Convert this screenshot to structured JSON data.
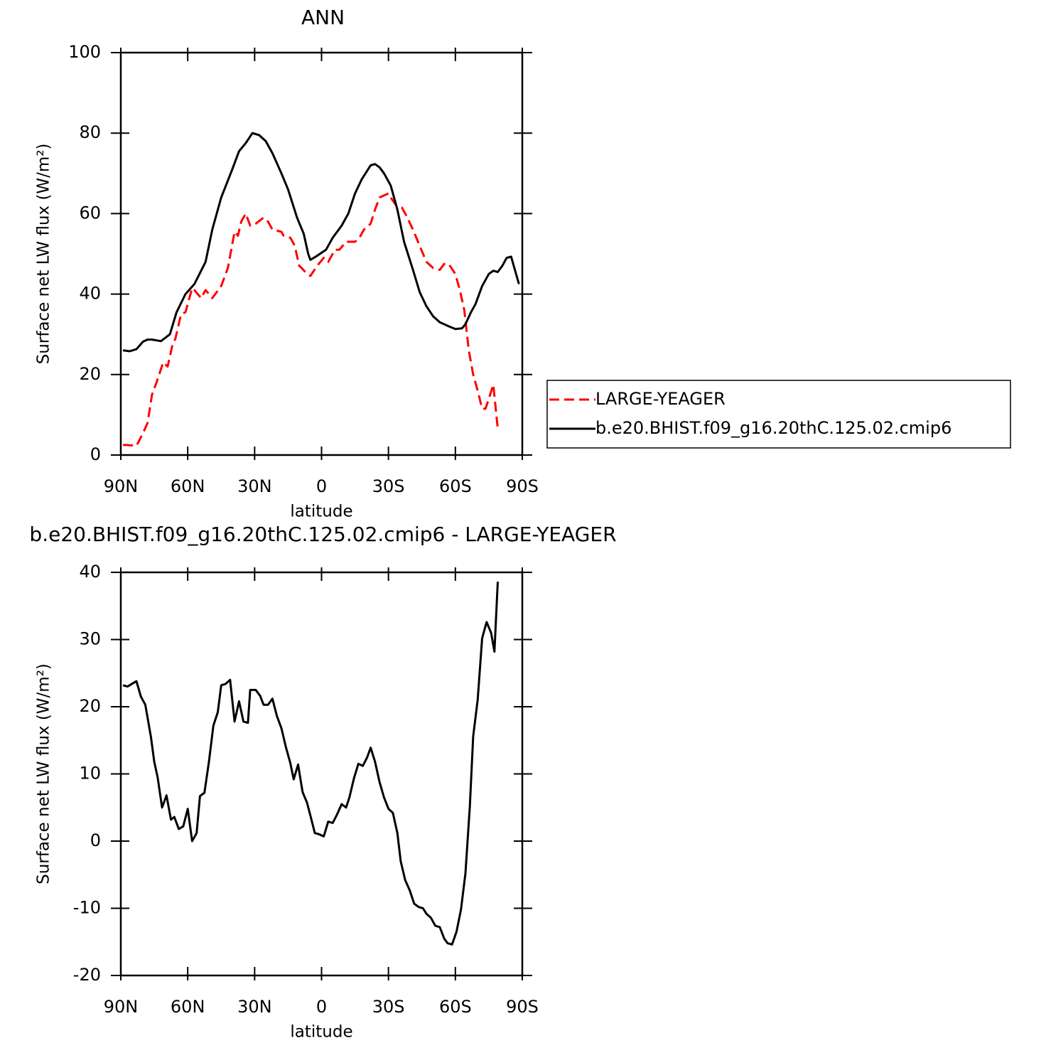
{
  "chart_data": [
    {
      "type": "line",
      "title": "ANN",
      "xlabel": "latitude",
      "ylabel": "Surface net LW flux (W/m²)",
      "xlim": [
        90,
        -90
      ],
      "xticks": [
        {
          "value": 90,
          "label": "90N"
        },
        {
          "value": 60,
          "label": "60N"
        },
        {
          "value": 30,
          "label": "30N"
        },
        0,
        {
          "value": -30,
          "label": "30S"
        },
        {
          "value": -60,
          "label": "60S"
        },
        {
          "value": -90,
          "label": "90S"
        }
      ],
      "ylim": [
        0,
        100
      ],
      "yticks": [
        0,
        20,
        40,
        60,
        80,
        100
      ],
      "legend": "right",
      "series": [
        {
          "name": "LARGE-YEAGER",
          "color": "#ff0000",
          "dashed": true,
          "x": [
            89,
            87,
            83,
            80,
            78,
            76,
            74,
            71,
            69,
            67,
            65.5,
            63,
            61,
            58,
            57,
            54,
            52,
            49,
            47,
            45,
            42,
            39,
            37.5,
            36,
            34,
            32,
            29.5,
            26,
            24,
            22,
            18,
            17,
            14,
            12,
            10,
            9,
            6.5,
            5,
            2,
            -1,
            -3,
            -6,
            -8,
            -11,
            -15,
            -17,
            -19,
            -22,
            -24,
            -26,
            -30,
            -31,
            -33.5,
            -36,
            -38,
            -41,
            -44,
            -47,
            -50,
            -53,
            -55,
            -57,
            -60,
            -62,
            -64,
            -66,
            -68,
            -70,
            -72,
            -73.5,
            -75,
            -77,
            -79
          ],
          "values": [
            2.5,
            2.5,
            2.3,
            5.5,
            8,
            15,
            18,
            23,
            22,
            27,
            29,
            35,
            35.5,
            41.5,
            41,
            39,
            41,
            39,
            40.5,
            42,
            46.5,
            55.5,
            54.5,
            58,
            60,
            57,
            57.5,
            59,
            58,
            56,
            55.5,
            54.5,
            54,
            52,
            47,
            46.5,
            45,
            44.5,
            47,
            49,
            48,
            51,
            51,
            53,
            53,
            54,
            56,
            57.5,
            61,
            64,
            65,
            64,
            62,
            61.5,
            59.5,
            56,
            52,
            48,
            46.5,
            46,
            47.5,
            47.5,
            45,
            41,
            36,
            26,
            20,
            16,
            11.5,
            11.5,
            14,
            17.5,
            6.5
          ]
        },
        {
          "name": "b.e20.BHIST.f09_g16.20thC.125.02.cmip6",
          "color": "#000000",
          "dashed": false,
          "x": [
            89,
            86,
            83,
            80,
            78,
            76,
            72,
            68,
            65,
            61,
            57,
            52,
            49,
            45,
            40,
            37,
            34,
            31,
            28,
            25,
            22,
            18,
            15,
            11,
            8,
            6,
            5,
            2,
            -2,
            -5,
            -9,
            -12,
            -15,
            -18,
            -22,
            -24,
            -26,
            -28,
            -31,
            -34,
            -37,
            -41,
            -44,
            -47,
            -50,
            -53,
            -57,
            -60,
            -63,
            -64.5,
            -67,
            -69,
            -72,
            -75,
            -77,
            -79,
            -81,
            -83,
            -85,
            -88.5
          ],
          "values": [
            26,
            25.8,
            26.3,
            28.2,
            28.7,
            28.7,
            28.3,
            30,
            35.5,
            40,
            42.5,
            48,
            56,
            64,
            71,
            75.5,
            77.5,
            80,
            79.5,
            78,
            75,
            70,
            66,
            59,
            55,
            50,
            48.5,
            49.5,
            51,
            54,
            57,
            60,
            65,
            68.5,
            72,
            72.3,
            71.5,
            70,
            67,
            61,
            53,
            46,
            40.5,
            37,
            34.5,
            33,
            32,
            31.3,
            31.5,
            32.5,
            35.5,
            37.5,
            42,
            45,
            45.8,
            45.5,
            47,
            49,
            49.3,
            42.5
          ]
        }
      ]
    },
    {
      "type": "line",
      "title": "b.e20.BHIST.f09_g16.20thC.125.02.cmip6 - LARGE-YEAGER",
      "xlabel": "latitude",
      "ylabel": "Surface net LW flux (W/m²)",
      "xlim": [
        90,
        -90
      ],
      "xticks": [
        {
          "value": 90,
          "label": "90N"
        },
        {
          "value": 60,
          "label": "60N"
        },
        {
          "value": 30,
          "label": "30N"
        },
        0,
        {
          "value": -30,
          "label": "30S"
        },
        {
          "value": -60,
          "label": "60S"
        },
        {
          "value": -90,
          "label": "90S"
        }
      ],
      "ylim": [
        -20,
        40
      ],
      "yticks": [
        -20,
        -10,
        0,
        10,
        20,
        30,
        40
      ],
      "color": "#000000",
      "x": [
        89,
        87,
        83,
        81,
        79,
        76.5,
        75,
        73.5,
        71.5,
        69.5,
        67.5,
        66,
        64,
        62,
        60,
        58,
        56,
        54.5,
        52.5,
        50.5,
        48.5,
        46.5,
        45,
        43,
        41,
        39,
        37,
        35,
        33,
        32,
        29.5,
        27.5,
        26,
        24,
        22,
        20,
        18,
        16,
        14,
        12.5,
        10.5,
        8.5,
        6.5,
        5,
        3,
        1,
        -1,
        -3,
        -5,
        -7,
        -9,
        -11,
        -12.5,
        -14.5,
        -16.5,
        -18.5,
        -20.5,
        -22,
        -24,
        -26,
        -28,
        -30,
        -32,
        -34,
        -35.5,
        -37.5,
        -39.5,
        -41.5,
        -43.5,
        -45.5,
        -47,
        -49,
        -51,
        -53,
        -55,
        -56.5,
        -58.5,
        -60.5,
        -62.5,
        -64.5,
        -66.5,
        -68,
        -70,
        -72,
        -74,
        -76,
        -77.5,
        -79
      ],
      "values": [
        23.2,
        23,
        23.8,
        21.5,
        20.3,
        15.5,
        11.8,
        9.5,
        5,
        6.8,
        3.2,
        3.6,
        1.8,
        2.2,
        4.8,
        0,
        1.2,
        6.7,
        7.2,
        11.8,
        17.2,
        19.2,
        23.2,
        23.4,
        24,
        17.8,
        20.8,
        17.8,
        17.6,
        22.5,
        22.5,
        21.6,
        20.3,
        20.3,
        21.2,
        18.6,
        16.8,
        14,
        11.6,
        9.2,
        11.4,
        7.3,
        5.7,
        3.8,
        1.2,
        1,
        0.7,
        2.9,
        2.7,
        4,
        5.5,
        5,
        6.5,
        9.3,
        11.5,
        11.2,
        12.5,
        13.9,
        11.8,
        8.8,
        6.5,
        4.8,
        4.2,
        1.2,
        -3,
        -5.8,
        -7.3,
        -9.3,
        -9.8,
        -10,
        -10.8,
        -11.4,
        -12.6,
        -12.8,
        -14.5,
        -15.2,
        -15.4,
        -13.5,
        -10.2,
        -4.8,
        5.2,
        15.6,
        21,
        30.2,
        32.6,
        31,
        28.2,
        38.6
      ]
    }
  ]
}
